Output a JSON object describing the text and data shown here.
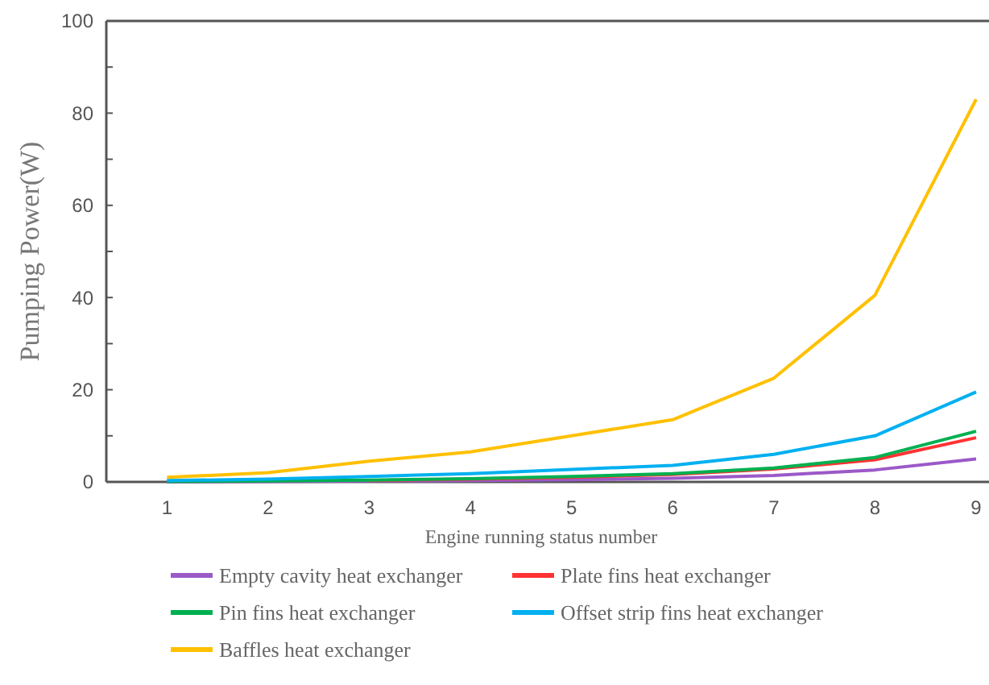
{
  "chart_data": {
    "type": "line",
    "xlabel": "Engine running status number",
    "ylabel": "Pumping Power(W)",
    "categories": [
      "1",
      "2",
      "3",
      "4",
      "5",
      "6",
      "7",
      "8",
      "9"
    ],
    "ylim": [
      0,
      100
    ],
    "yticks": [
      0,
      {
        "value": 10,
        "label": null
      },
      20,
      {
        "value": 30,
        "label": null
      },
      40,
      {
        "value": 50,
        "label": null
      },
      60,
      {
        "value": 70,
        "label": null
      },
      80,
      {
        "value": 90,
        "label": null
      },
      100
    ],
    "grid": false,
    "legend": "bottom",
    "marker": "none",
    "line_style": "solid",
    "series": [
      {
        "name": "Empty cavity heat exchanger",
        "color": "#9b59c8",
        "values": [
          0,
          0.1,
          0.2,
          0.3,
          0.5,
          0.8,
          1.4,
          2.6,
          5
        ]
      },
      {
        "name": "Plate fins heat exchanger",
        "color": "#ff3333",
        "values": [
          null,
          null,
          0.3,
          0.6,
          1,
          1.6,
          2.8,
          4.8,
          9.6
        ]
      },
      {
        "name": "Pin fins heat exchanger",
        "color": "#00b050",
        "values": [
          0.1,
          0.2,
          0.4,
          0.7,
          1.2,
          1.8,
          3,
          5.3,
          11
        ]
      },
      {
        "name": "Offset strip fins heat exchanger",
        "color": "#00b0f0",
        "values": [
          0.3,
          0.6,
          1.2,
          1.8,
          2.7,
          3.6,
          6,
          10,
          19.5
        ]
      },
      {
        "name": "Baffles heat exchanger",
        "color": "#ffc000",
        "values": [
          1,
          2,
          4.5,
          6.5,
          10,
          13.5,
          22.5,
          40.5,
          83
        ]
      }
    ]
  }
}
